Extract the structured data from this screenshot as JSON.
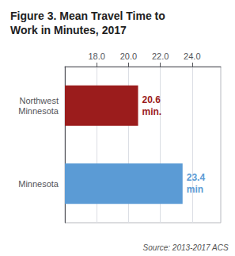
{
  "chart_data": {
    "type": "bar",
    "orientation": "horizontal",
    "title": "Figure 3. Mean Travel Time to\nWork in Minutes, 2017",
    "categories": [
      "Minnesota",
      "Northwest\nMinnesota"
    ],
    "values": [
      23.4,
      20.6
    ],
    "value_labels": [
      "23.4\nmin",
      "20.6\nmin."
    ],
    "colors": [
      "#5b9bd5",
      "#9b1c1c"
    ],
    "xlim": [
      16.0,
      25.8
    ],
    "xticks": [
      {
        "value": 18.0,
        "label": "18.0"
      },
      {
        "value": 20.0,
        "label": "20.0"
      },
      {
        "value": 22.0,
        "label": "22.0"
      },
      {
        "value": 24.0,
        "label": "24.0"
      }
    ],
    "grid": true,
    "data_labels": true,
    "annotations": [
      "Source: 2013-2017 ACS"
    ]
  }
}
